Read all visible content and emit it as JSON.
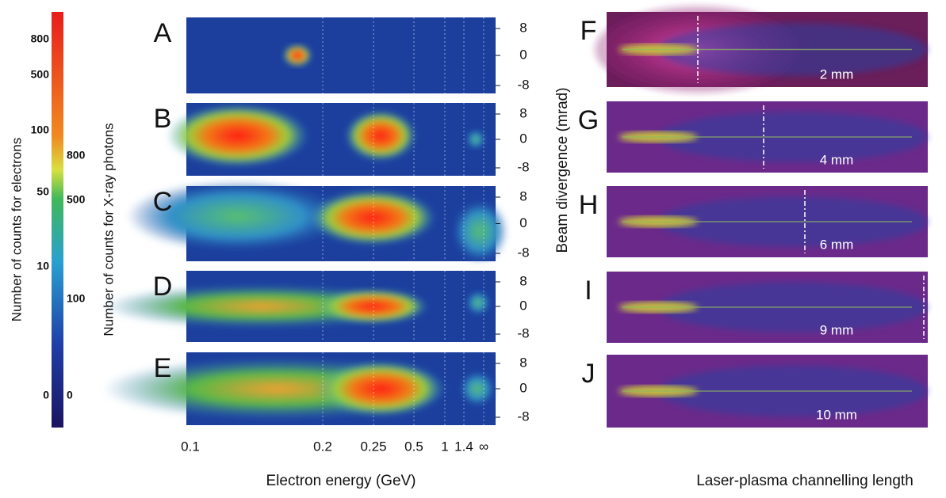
{
  "colorbar": {
    "electron_label": "Number of counts for electrons",
    "xray_label": "Number of counts for X-ray photons",
    "electron_ticks": [
      "800",
      "500",
      "100",
      "50",
      "10",
      "0"
    ],
    "xray_ticks": [
      "800",
      "500",
      "100",
      "0"
    ]
  },
  "spectra": {
    "panels": [
      {
        "label": "A"
      },
      {
        "label": "B"
      },
      {
        "label": "C"
      },
      {
        "label": "D"
      },
      {
        "label": "E"
      }
    ],
    "y_ticks": [
      "8",
      "0",
      "-8"
    ],
    "y_label": "Beam divergence (mrad)",
    "x_ticks": [
      "0.1",
      "0.2",
      "0.25",
      "0.5",
      "1",
      "1.4",
      "∞"
    ],
    "x_label": "Electron energy   (GeV)"
  },
  "channels": {
    "panels": [
      {
        "label": "F",
        "length": "2 mm"
      },
      {
        "label": "G",
        "length": "4 mm"
      },
      {
        "label": "H",
        "length": "6 mm"
      },
      {
        "label": "I",
        "length": "9 mm"
      },
      {
        "label": "J",
        "length": "10 mm"
      }
    ],
    "x_label": "Laser-plasma channelling length"
  }
}
